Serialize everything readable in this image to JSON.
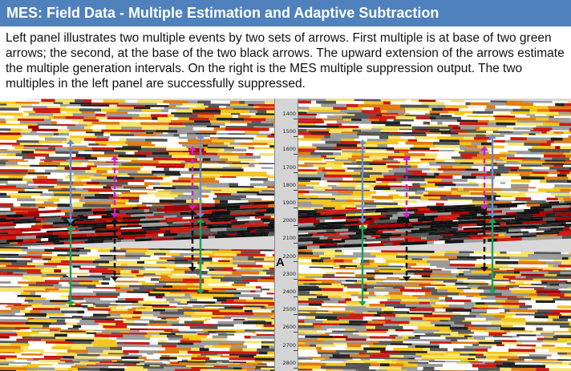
{
  "header": {
    "title": "MES: Field Data - Multiple Estimation and Adaptive Subtraction"
  },
  "description": {
    "text": "Left panel illustrates two multiple events by two sets of arrows.  First multiple is at base of two green arrows; the second, at the base of the two black arrows. The upward extension of the arrows estimate the multiple generation intervals. On the right is the MES multiple suppression output.  The two multiples in the left panel are successfully suppressed."
  },
  "depth_scale": {
    "label": "A",
    "ticks": [
      "1400",
      "1500",
      "1600",
      "1700",
      "1800",
      "1900",
      "2000",
      "2100",
      "2200",
      "2300",
      "2400",
      "2500",
      "2600",
      "2700",
      "2800"
    ]
  },
  "colors": {
    "blue_arrow": "#6a8ccc",
    "green_arrow": "#22a05a",
    "magenta_arrow": "#cc22cc",
    "black_arrow": "#111111",
    "header_bg": "#4f81bd"
  }
}
